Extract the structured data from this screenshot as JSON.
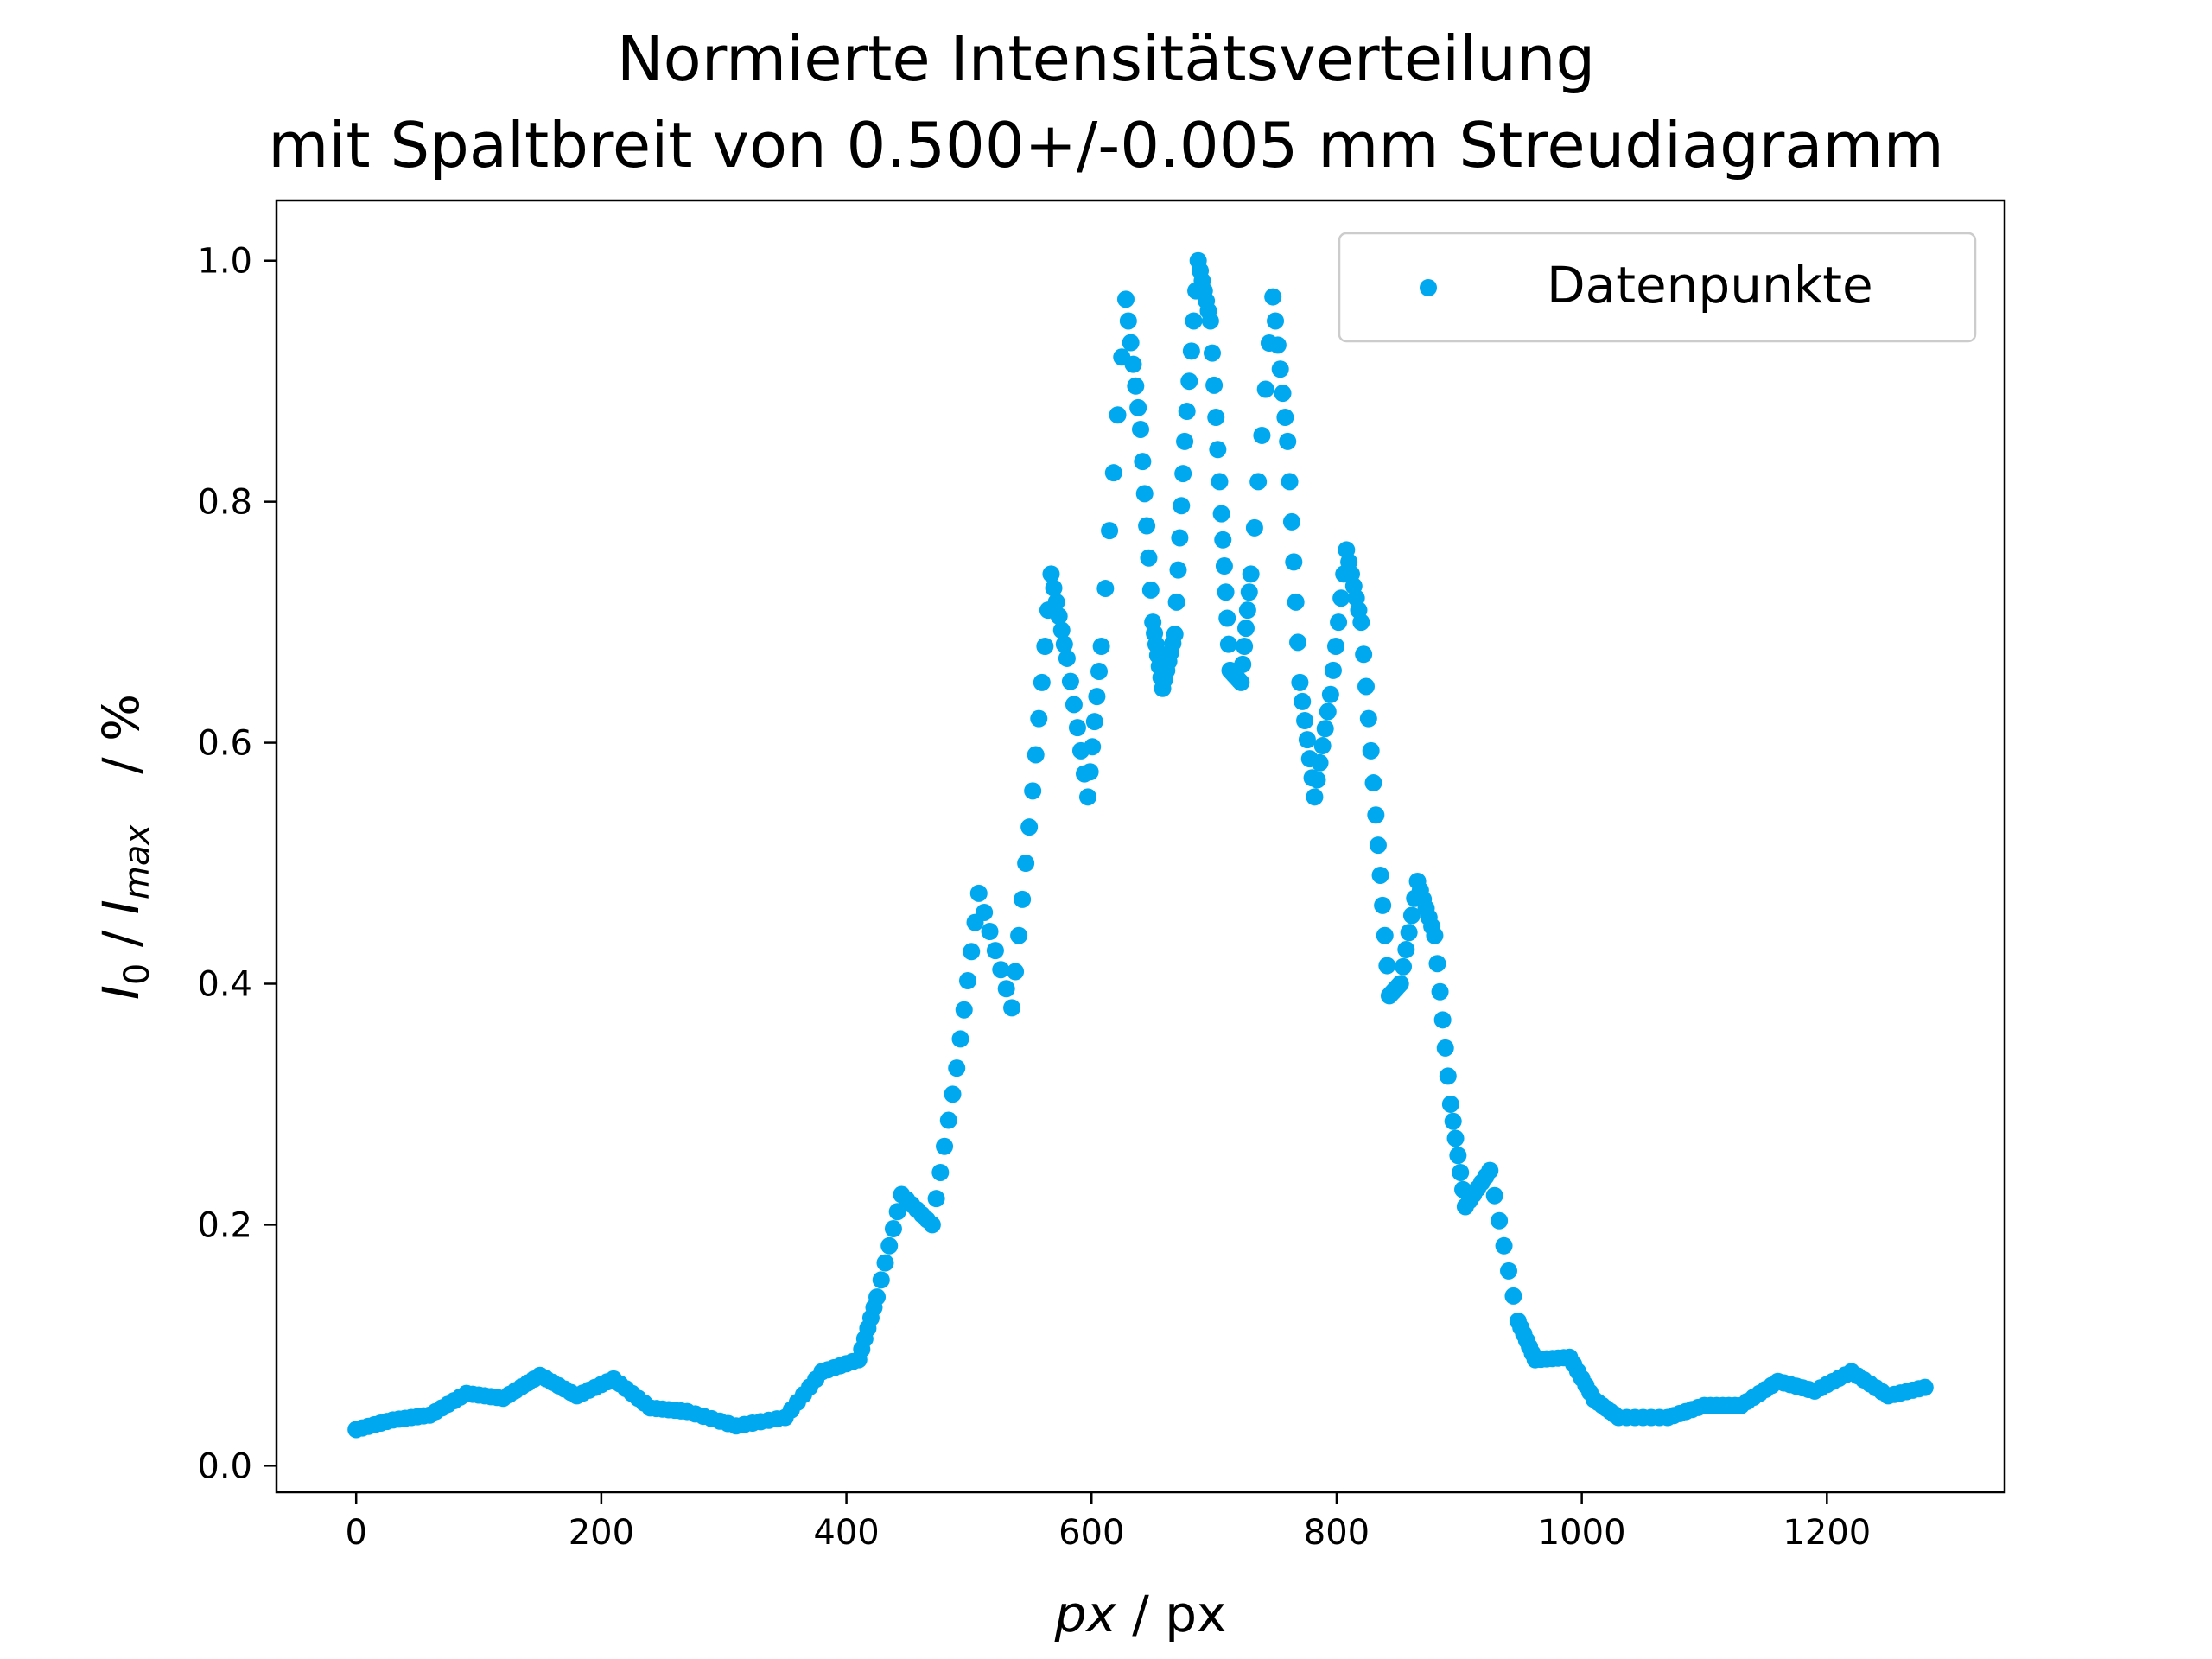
{
  "chart_data": {
    "type": "scatter",
    "title_line1": "Normierte Intensitätsverteilung",
    "title_line2": "mit Spaltbreit von 0.500+/-0.005 mm Streudiagramm",
    "xlabel_var": "px",
    "xlabel_unit": " / px",
    "ylabel_i0": "I",
    "ylabel_i0_sub": "0",
    "ylabel_sep": " / ",
    "ylabel_imax": "I",
    "ylabel_imax_sub": "max",
    "ylabel_unit": "/ %",
    "xlim": [
      -65,
      1345
    ],
    "ylim": [
      -0.022,
      1.05
    ],
    "xticks": [
      "0",
      "200",
      "400",
      "600",
      "800",
      "1000",
      "1200"
    ],
    "yticks": [
      "0.0",
      "0.2",
      "0.4",
      "0.6",
      "0.8",
      "1.0"
    ],
    "legend": {
      "label": "Datenpunkte",
      "position": "upper right"
    },
    "series": [
      {
        "name": "Datenpunkte",
        "color": "#00a8f0",
        "keypoints": [
          [
            0,
            0.03
          ],
          [
            30,
            0.038
          ],
          [
            60,
            0.042
          ],
          [
            90,
            0.06
          ],
          [
            120,
            0.056
          ],
          [
            150,
            0.075
          ],
          [
            180,
            0.058
          ],
          [
            210,
            0.072
          ],
          [
            240,
            0.048
          ],
          [
            270,
            0.045
          ],
          [
            310,
            0.033
          ],
          [
            350,
            0.04
          ],
          [
            380,
            0.078
          ],
          [
            410,
            0.088
          ],
          [
            425,
            0.14
          ],
          [
            445,
            0.225
          ],
          [
            470,
            0.2
          ],
          [
            490,
            0.33
          ],
          [
            508,
            0.475
          ],
          [
            535,
            0.38
          ],
          [
            552,
            0.56
          ],
          [
            567,
            0.74
          ],
          [
            580,
            0.67
          ],
          [
            597,
            0.555
          ],
          [
            608,
            0.68
          ],
          [
            628,
            0.968
          ],
          [
            640,
            0.86
          ],
          [
            650,
            0.7
          ],
          [
            658,
            0.645
          ],
          [
            668,
            0.69
          ],
          [
            676,
            0.85
          ],
          [
            687,
            1.0
          ],
          [
            697,
            0.95
          ],
          [
            706,
            0.79
          ],
          [
            713,
            0.66
          ],
          [
            722,
            0.65
          ],
          [
            730,
            0.74
          ],
          [
            748,
            0.97
          ],
          [
            760,
            0.85
          ],
          [
            770,
            0.65
          ],
          [
            782,
            0.555
          ],
          [
            795,
            0.64
          ],
          [
            808,
            0.76
          ],
          [
            820,
            0.7
          ],
          [
            832,
            0.54
          ],
          [
            843,
            0.39
          ],
          [
            852,
            0.4
          ],
          [
            866,
            0.485
          ],
          [
            880,
            0.44
          ],
          [
            893,
            0.3
          ],
          [
            905,
            0.215
          ],
          [
            925,
            0.245
          ],
          [
            948,
            0.12
          ],
          [
            962,
            0.088
          ],
          [
            990,
            0.09
          ],
          [
            1010,
            0.055
          ],
          [
            1030,
            0.04
          ],
          [
            1070,
            0.04
          ],
          [
            1100,
            0.05
          ],
          [
            1130,
            0.05
          ],
          [
            1160,
            0.07
          ],
          [
            1190,
            0.062
          ],
          [
            1220,
            0.078
          ],
          [
            1250,
            0.058
          ],
          [
            1280,
            0.065
          ]
        ]
      }
    ]
  }
}
